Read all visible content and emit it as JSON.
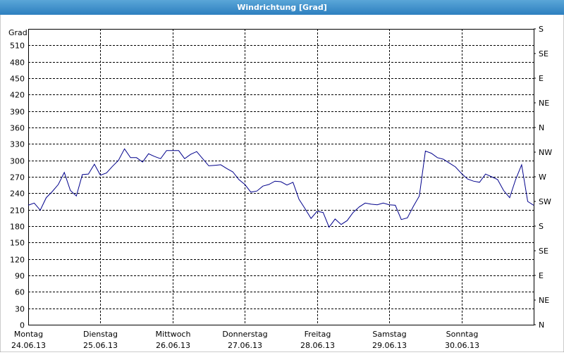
{
  "chart_data": {
    "type": "line",
    "title": "Windrichtung [Grad]",
    "y_label": "Grad",
    "x": [
      0,
      2,
      4,
      6,
      8,
      10,
      12,
      14,
      16,
      18,
      20,
      22,
      24,
      26,
      28,
      30,
      32,
      34,
      36,
      38,
      40,
      42,
      44,
      46,
      48,
      50,
      52,
      54,
      56,
      58,
      60,
      62,
      64,
      66,
      68,
      70,
      72,
      74,
      76,
      78,
      80,
      82,
      84,
      86,
      88,
      90,
      92,
      94,
      96,
      98,
      100,
      102,
      104,
      106,
      108,
      110,
      112,
      114,
      116,
      118,
      120,
      122,
      124,
      126,
      128,
      130,
      132,
      134,
      136,
      138,
      140,
      142,
      144,
      146,
      148,
      150,
      152,
      154,
      156,
      158,
      160,
      162,
      164,
      166,
      168
    ],
    "series": [
      {
        "name": "Windrichtung",
        "color": "#00008b",
        "values": [
          218,
          222,
          209,
          232,
          243,
          256,
          278,
          245,
          235,
          274,
          275,
          293,
          273,
          277,
          289,
          300,
          321,
          305,
          305,
          297,
          312,
          307,
          303,
          318,
          318,
          318,
          303,
          311,
          316,
          303,
          290,
          291,
          292,
          285,
          279,
          265,
          256,
          242,
          244,
          253,
          256,
          262,
          261,
          255,
          260,
          229,
          212,
          194,
          207,
          205,
          178,
          193,
          183,
          190,
          205,
          215,
          222,
          220,
          219,
          222,
          219,
          218,
          192,
          195,
          216,
          235,
          317,
          313,
          305,
          302,
          295,
          288,
          276,
          266,
          262,
          260,
          275,
          270,
          265,
          245,
          232,
          265,
          292,
          225,
          218
        ]
      }
    ],
    "xlim": [
      0,
      168
    ],
    "xticks": [
      {
        "value": 0,
        "label": "Montag",
        "date": "24.06.13"
      },
      {
        "value": 24,
        "label": "Dienstag",
        "date": "25.06.13"
      },
      {
        "value": 48,
        "label": "Mittwoch",
        "date": "26.06.13"
      },
      {
        "value": 72,
        "label": "Donnerstag",
        "date": "27.06.13"
      },
      {
        "value": 96,
        "label": "Freitag",
        "date": "28.06.13"
      },
      {
        "value": 120,
        "label": "Samstag",
        "date": "29.06.13"
      },
      {
        "value": 144,
        "label": "Sonntag",
        "date": "30.06.13"
      }
    ],
    "ylim": [
      0,
      540
    ],
    "yticks": [
      0,
      30,
      60,
      90,
      120,
      150,
      180,
      210,
      240,
      270,
      300,
      330,
      360,
      390,
      420,
      450,
      480,
      510
    ],
    "y2lim": [
      0,
      540
    ],
    "y2ticks": [
      {
        "value": 0,
        "label": "N"
      },
      {
        "value": 45,
        "label": "NE"
      },
      {
        "value": 90,
        "label": "E"
      },
      {
        "value": 135,
        "label": "SE"
      },
      {
        "value": 180,
        "label": "S"
      },
      {
        "value": 225,
        "label": "SW"
      },
      {
        "value": 270,
        "label": "W"
      },
      {
        "value": 315,
        "label": "NW"
      },
      {
        "value": 360,
        "label": "N"
      },
      {
        "value": 405,
        "label": "NE"
      },
      {
        "value": 450,
        "label": "E"
      },
      {
        "value": 495,
        "label": "SE"
      },
      {
        "value": 540,
        "label": "S"
      }
    ],
    "grid": true
  }
}
